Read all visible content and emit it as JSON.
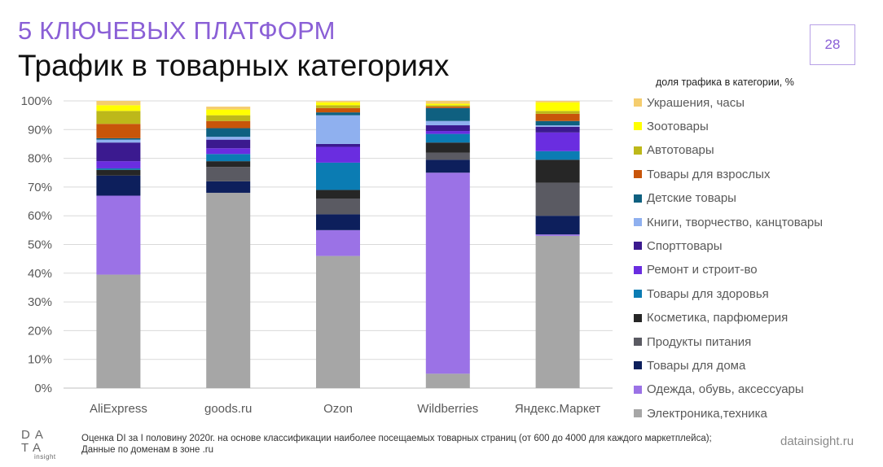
{
  "header": {
    "section_title": "5 КЛЮЧЕВЫХ ПЛАТФОРМ",
    "title": "Трафик в товарных категориях",
    "page_number": "28"
  },
  "chart_data": {
    "type": "bar",
    "stacked": true,
    "legend_title": "доля трафика в категории, %",
    "legend_placement": "right",
    "categories": [
      "AliExpress",
      "goods.ru",
      "Ozon",
      "Wildberries",
      "Яндекс.Маркет"
    ],
    "ylim": [
      0,
      100
    ],
    "y_ticks": [
      "0%",
      "10%",
      "20%",
      "30%",
      "40%",
      "50%",
      "60%",
      "70%",
      "80%",
      "90%",
      "100%"
    ],
    "grid": true,
    "series": [
      {
        "name": "Электроника,техника",
        "color": "#a6a6a6",
        "values": [
          39.5,
          68,
          46,
          5,
          53
        ]
      },
      {
        "name": "Одежда, обувь, аксессуары",
        "color": "#9b72e6",
        "values": [
          27.5,
          0,
          9,
          70,
          0.5
        ]
      },
      {
        "name": "Товары для дома",
        "color": "#0d1f5c",
        "values": [
          7,
          4,
          5.5,
          4.5,
          6.5
        ]
      },
      {
        "name": "Продукты питания",
        "color": "#5a5a62",
        "values": [
          0,
          5,
          5.5,
          2.5,
          11.5
        ]
      },
      {
        "name": "Косметика, парфюмерия",
        "color": "#262626",
        "values": [
          2,
          2,
          3,
          3.5,
          8
        ]
      },
      {
        "name": "Товары для здоровья",
        "color": "#0b7cb3",
        "values": [
          0.5,
          2.5,
          9.5,
          3,
          3
        ]
      },
      {
        "name": "Ремонт и строит-во",
        "color": "#6a2de0",
        "values": [
          2.5,
          2,
          5.5,
          1,
          6.5
        ]
      },
      {
        "name": "Спорттовары",
        "color": "#3b1a8f",
        "values": [
          6.5,
          3,
          1,
          2,
          2
        ]
      },
      {
        "name": "Книги, творчество, канцтовары",
        "color": "#8fb0ef",
        "values": [
          1,
          1,
          10,
          1.5,
          0.5
        ]
      },
      {
        "name": "Детские товары",
        "color": "#0f6080",
        "values": [
          0.5,
          3,
          1,
          4.5,
          1.5
        ]
      },
      {
        "name": "Товары для взрослых",
        "color": "#c8550a",
        "values": [
          5,
          2.5,
          1.5,
          0.5,
          2.5
        ]
      },
      {
        "name": "Автотовары",
        "color": "#bdb81a",
        "values": [
          4.5,
          2,
          1,
          0.5,
          1
        ]
      },
      {
        "name": "Зоотовары",
        "color": "#ffff00",
        "values": [
          2,
          2,
          1,
          0.5,
          3
        ]
      },
      {
        "name": "Украшения, часы",
        "color": "#f5cd6e",
        "values": [
          1.5,
          1,
          0.5,
          1,
          0.5
        ]
      }
    ]
  },
  "footer": {
    "note_line1": "Оценка DI за I половину 2020г. на основе классификации наиболее посещаемых товарных страниц (от 600 до 4000 для каждого маркетплейса);",
    "note_line2": "Данные по доменам в зоне .ru",
    "logo_line1": "DA",
    "logo_line2": "TA",
    "logo_line3": "insight",
    "site": "datainsight.ru"
  }
}
